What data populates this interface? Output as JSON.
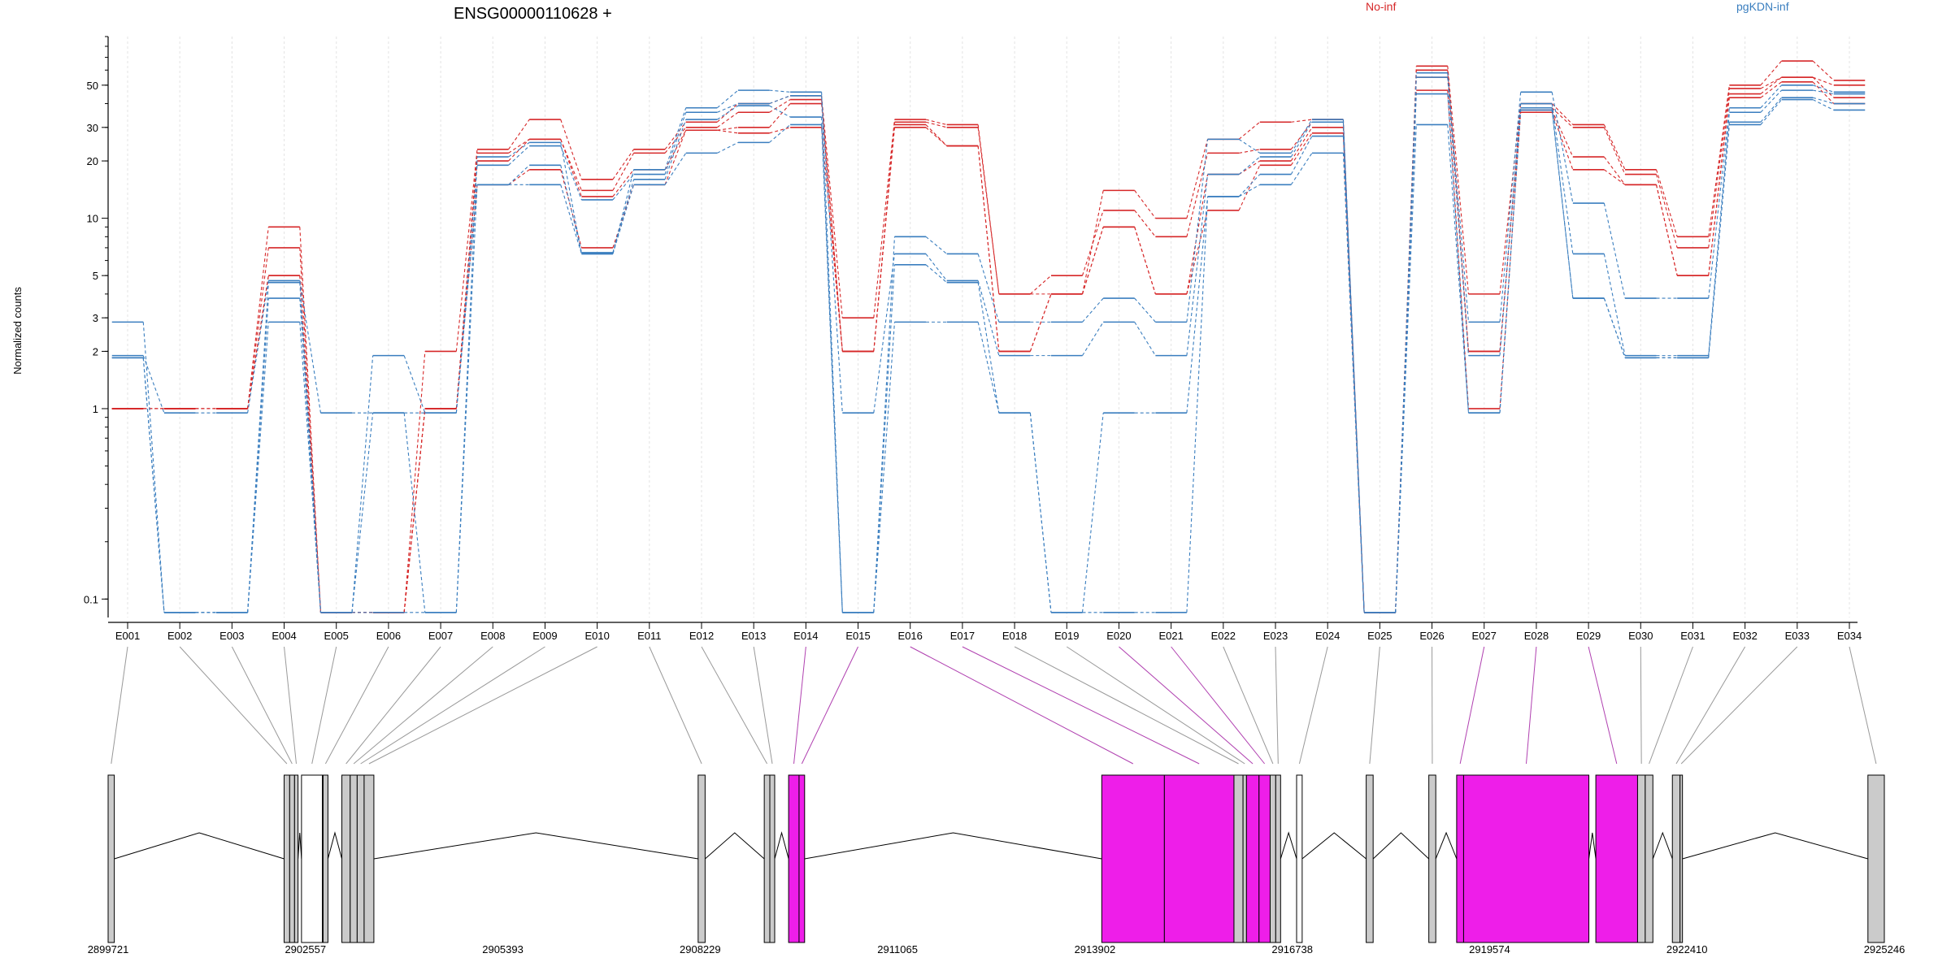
{
  "colors": {
    "group1": "#d62728",
    "group2": "#3a7ebf",
    "highlight": "#ee1ee9",
    "exon": "#cbcbcb"
  },
  "chart_data": {
    "type": "line",
    "title": "ENSG00000110628 +",
    "ylabel": "Normalized counts",
    "yscale": "log",
    "ylim": [
      0.08,
      90
    ],
    "yticks": [
      0.1,
      1,
      2,
      3,
      5,
      10,
      20,
      30,
      50
    ],
    "ytick_labels": [
      "0.1",
      "1",
      "2",
      "3",
      "5",
      "10",
      "20",
      "30",
      "50"
    ],
    "categories": [
      "E001",
      "E002",
      "E003",
      "E004",
      "E005",
      "E006",
      "E007",
      "E008",
      "E009",
      "E010",
      "E011",
      "E012",
      "E013",
      "E014",
      "E015",
      "E016",
      "E017",
      "E018",
      "E019",
      "E020",
      "E021",
      "E022",
      "E023",
      "E024",
      "E025",
      "E026",
      "E027",
      "E028",
      "E029",
      "E030",
      "E031",
      "E032",
      "E033",
      "E034"
    ],
    "legend": [
      {
        "label": "No-inf",
        "color": "#d62728"
      },
      {
        "label": "pgKDN-inf",
        "color": "#3a7ebf"
      }
    ],
    "series": [
      {
        "group": "No-inf",
        "values": [
          1,
          1,
          1,
          9,
          0.085,
          0.085,
          2,
          23,
          33,
          16,
          23,
          32,
          40,
          44,
          3,
          33,
          31,
          4,
          4,
          14,
          10,
          26,
          32,
          33,
          0.085,
          63,
          4,
          40,
          31,
          18,
          8,
          50,
          67,
          53
        ]
      },
      {
        "group": "No-inf",
        "values": [
          1,
          1,
          1,
          7,
          0.085,
          0.085,
          1,
          22,
          26,
          14,
          22,
          30,
          36,
          42,
          2,
          32,
          30,
          4,
          5,
          11,
          8,
          22,
          23,
          32,
          0.085,
          60,
          2,
          38,
          30,
          17,
          7,
          48,
          55,
          50
        ]
      },
      {
        "group": "No-inf",
        "values": [
          1,
          1,
          1,
          5,
          0.085,
          0.085,
          1,
          20,
          26,
          13,
          18,
          29,
          30,
          40,
          2,
          31,
          24,
          2,
          4,
          9,
          4,
          17,
          20,
          30,
          0.085,
          55,
          2,
          37,
          21,
          15,
          5,
          45,
          55,
          43
        ]
      },
      {
        "group": "No-inf",
        "values": [
          1,
          1,
          1,
          5,
          0.085,
          0.085,
          1,
          15,
          18,
          7,
          15,
          29,
          28,
          30,
          2,
          30,
          24,
          2,
          4,
          9,
          4,
          11,
          19,
          28,
          0.085,
          47,
          1,
          36,
          18,
          15,
          5,
          43,
          52,
          40
        ]
      },
      {
        "group": "pgKDN-inf",
        "values": [
          2.85,
          0.085,
          0.085,
          2.85,
          0.085,
          0.085,
          0.085,
          21,
          25,
          6.5,
          18,
          38,
          47,
          46,
          0.085,
          8,
          6.5,
          2.85,
          2.85,
          3.8,
          2.85,
          26,
          22,
          33,
          0.085,
          58,
          2.85,
          46,
          12,
          3.8,
          3.8,
          38,
          50,
          46
        ]
      },
      {
        "group": "pgKDN-inf",
        "values": [
          1.9,
          0.95,
          0.95,
          4.7,
          0.95,
          0.95,
          0.95,
          19,
          24,
          12.5,
          17,
          36,
          40,
          44,
          0.95,
          6.5,
          4.7,
          1.9,
          1.9,
          2.85,
          1.9,
          17,
          21,
          32,
          0.085,
          55,
          1.9,
          40,
          6.5,
          1.9,
          1.9,
          36,
          47,
          45
        ]
      },
      {
        "group": "pgKDN-inf",
        "values": [
          1.85,
          0.085,
          0.085,
          4.6,
          0.085,
          1.9,
          0.95,
          15,
          19,
          6.6,
          16,
          33,
          39,
          34,
          0.085,
          5.7,
          4.6,
          0.95,
          0.085,
          0.95,
          0.95,
          13,
          17,
          27,
          0.085,
          45,
          0.95,
          38,
          3.8,
          1.85,
          1.85,
          32,
          43,
          40
        ]
      },
      {
        "group": "pgKDN-inf",
        "values": [
          1.85,
          0.085,
          0.085,
          3.8,
          0.085,
          0.95,
          0.085,
          15,
          15,
          6.5,
          15,
          22,
          25,
          31,
          0.085,
          2.85,
          2.85,
          0.95,
          0.085,
          0.085,
          0.085,
          13,
          15,
          22,
          0.085,
          31,
          0.95,
          37,
          3.8,
          1.85,
          1.85,
          31,
          42,
          37
        ]
      }
    ],
    "gene_model": {
      "coord_labels": [
        "2899721",
        "2902557",
        "2905393",
        "2908229",
        "2911065",
        "2913902",
        "2916738",
        "2919574",
        "2922410",
        "2925246"
      ],
      "coord_range": [
        2899721,
        2925246
      ],
      "exons": [
        {
          "id": "E001",
          "start": 2899721,
          "end": 2899810,
          "highlight": false
        },
        {
          "id": "E002",
          "start": 2902250,
          "end": 2902330,
          "highlight": false
        },
        {
          "id": "E003",
          "start": 2902330,
          "end": 2902400,
          "highlight": false
        },
        {
          "id": "E004",
          "start": 2902400,
          "end": 2902450,
          "highlight": false
        },
        {
          "id": "E005",
          "start": 2902500,
          "end": 2902800,
          "highlight": false,
          "open": true
        },
        {
          "id": "E006",
          "start": 2902810,
          "end": 2902880,
          "highlight": false
        },
        {
          "id": "E007",
          "start": 2903080,
          "end": 2903200,
          "highlight": false
        },
        {
          "id": "E008",
          "start": 2903200,
          "end": 2903300,
          "highlight": false
        },
        {
          "id": "E009",
          "start": 2903300,
          "end": 2903400,
          "highlight": false
        },
        {
          "id": "E010",
          "start": 2903400,
          "end": 2903540,
          "highlight": false
        },
        {
          "id": "E011",
          "start": 2908200,
          "end": 2908300,
          "highlight": false
        },
        {
          "id": "E012",
          "start": 2909150,
          "end": 2909230,
          "highlight": false
        },
        {
          "id": "E013",
          "start": 2909230,
          "end": 2909300,
          "highlight": false
        },
        {
          "id": "E014",
          "start": 2909500,
          "end": 2909650,
          "highlight": true
        },
        {
          "id": "E015",
          "start": 2909650,
          "end": 2909730,
          "highlight": true
        },
        {
          "id": "E016",
          "start": 2914000,
          "end": 2914900,
          "highlight": true
        },
        {
          "id": "E017",
          "start": 2914900,
          "end": 2915900,
          "highlight": true
        },
        {
          "id": "E018",
          "start": 2915900,
          "end": 2916030,
          "highlight": false
        },
        {
          "id": "E019",
          "start": 2916030,
          "end": 2916080,
          "highlight": false
        },
        {
          "id": "E020",
          "start": 2916080,
          "end": 2916260,
          "highlight": true
        },
        {
          "id": "E021",
          "start": 2916260,
          "end": 2916420,
          "highlight": true
        },
        {
          "id": "E022",
          "start": 2916420,
          "end": 2916500,
          "highlight": false
        },
        {
          "id": "E023",
          "start": 2916500,
          "end": 2916570,
          "highlight": false
        },
        {
          "id": "E024",
          "start": 2916800,
          "end": 2916880,
          "highlight": false,
          "open": true
        },
        {
          "id": "E025",
          "start": 2917800,
          "end": 2917900,
          "highlight": false
        },
        {
          "id": "E026",
          "start": 2918700,
          "end": 2918800,
          "highlight": false
        },
        {
          "id": "E027",
          "start": 2919100,
          "end": 2919200,
          "highlight": true
        },
        {
          "id": "E028",
          "start": 2919200,
          "end": 2921000,
          "highlight": true
        },
        {
          "id": "E029",
          "start": 2921100,
          "end": 2921700,
          "highlight": true
        },
        {
          "id": "E030",
          "start": 2921700,
          "end": 2921810,
          "highlight": false
        },
        {
          "id": "E031",
          "start": 2921810,
          "end": 2921920,
          "highlight": false
        },
        {
          "id": "E032",
          "start": 2922200,
          "end": 2922310,
          "highlight": false
        },
        {
          "id": "E033",
          "start": 2922310,
          "end": 2922330,
          "highlight": false
        },
        {
          "id": "E034",
          "start": 2925010,
          "end": 2925246,
          "highlight": false
        }
      ]
    }
  }
}
